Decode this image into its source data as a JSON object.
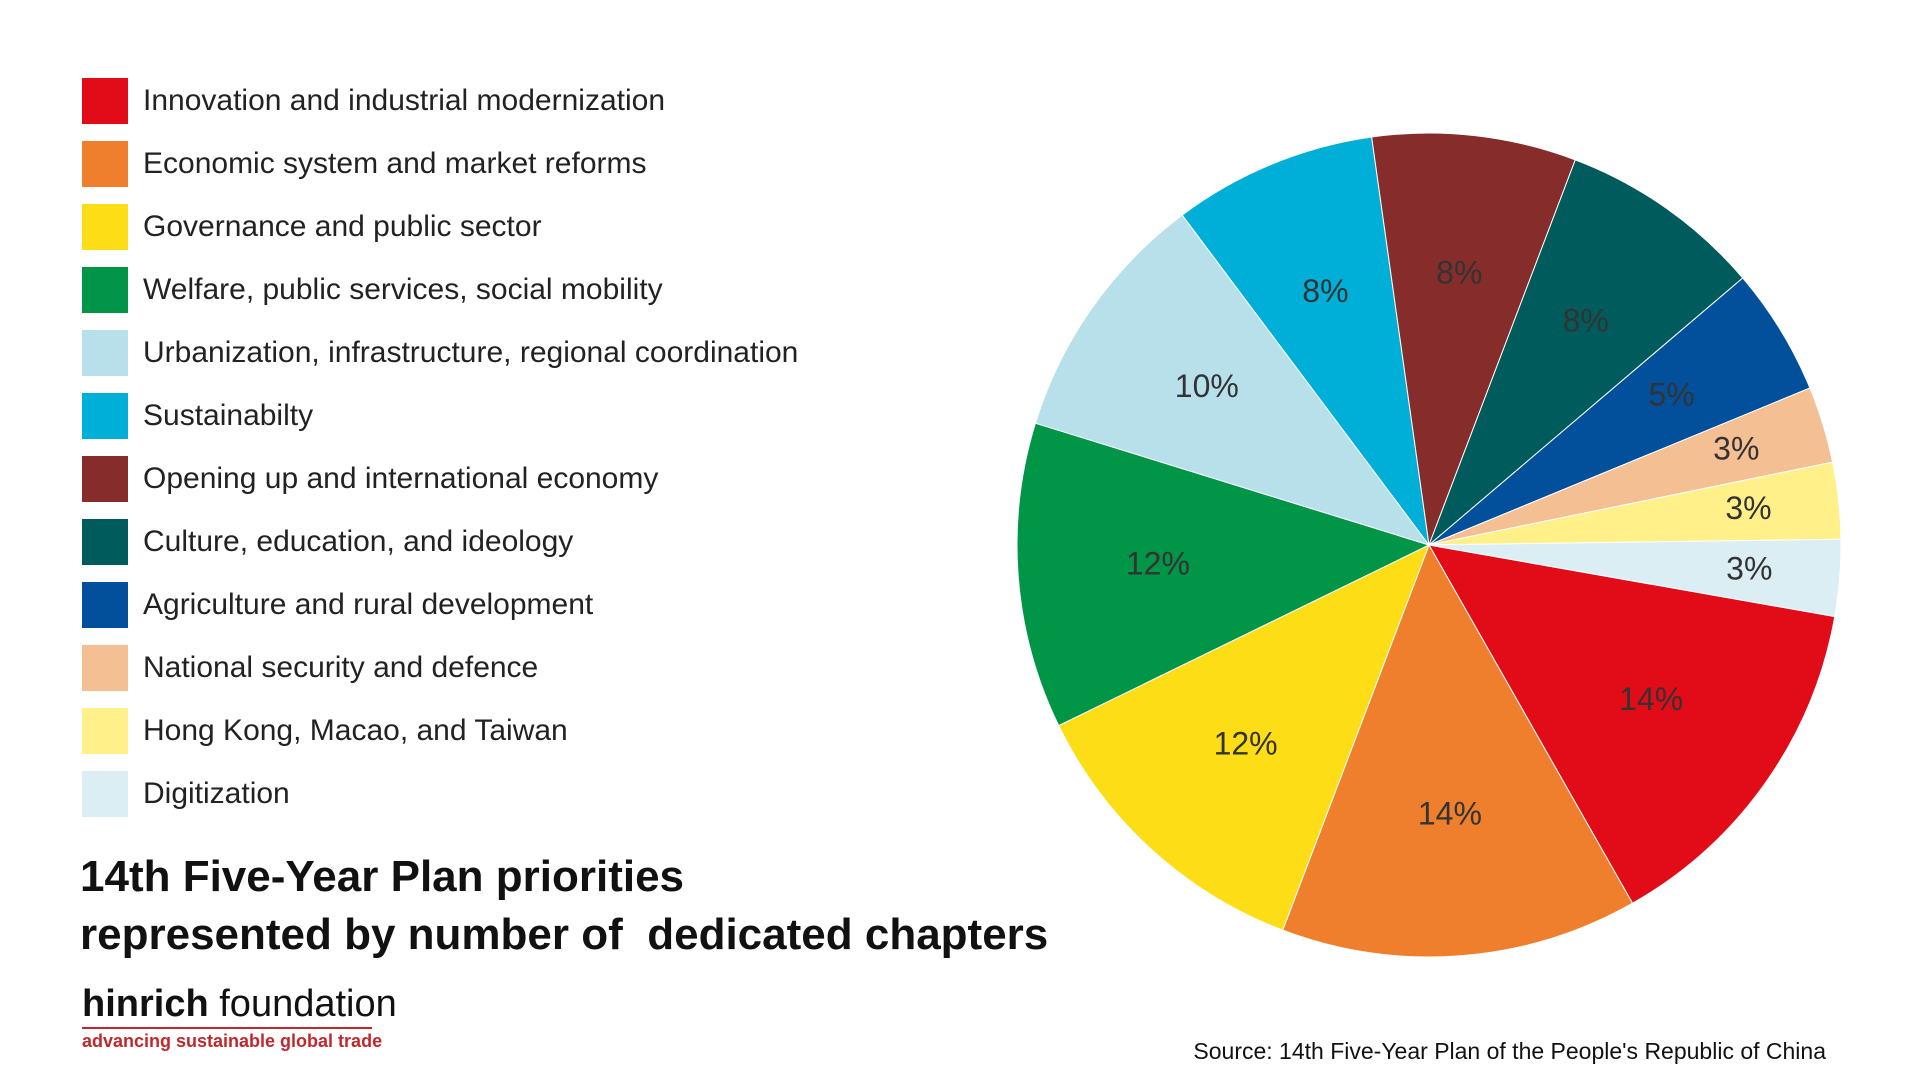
{
  "chart_data": {
    "type": "pie",
    "title": "14th Five-Year Plan priorities represented by number of  dedicated chapters",
    "title_lines": [
      "14th Five-Year Plan priorities",
      "represented by number of  dedicated chapters"
    ],
    "legend_position": "left",
    "slices": [
      {
        "label": "Innovation and industrial modernization",
        "value": 14,
        "display": "14%",
        "color": "#e20b18"
      },
      {
        "label": "Economic system and market reforms",
        "value": 14,
        "display": "14%",
        "color": "#ef7f2c"
      },
      {
        "label": "Governance and public sector",
        "value": 12,
        "display": "12%",
        "color": "#fddd15"
      },
      {
        "label": "Welfare, public services, social mobility",
        "value": 12,
        "display": "12%",
        "color": "#009547"
      },
      {
        "label": "Urbanization, infrastructure, regional coordination",
        "value": 10,
        "display": "10%",
        "color": "#b8e0ea"
      },
      {
        "label": "Sustainabilty",
        "value": 8,
        "display": "8%",
        "color": "#00afd8"
      },
      {
        "label": "Opening up and international economy",
        "value": 8,
        "display": "8%",
        "color": "#862c2a"
      },
      {
        "label": "Culture, education, and ideology",
        "value": 8,
        "display": "8%",
        "color": "#005b5c"
      },
      {
        "label": "Agriculture and rural development",
        "value": 5,
        "display": "5%",
        "color": "#02509b"
      },
      {
        "label": "National security and defence",
        "value": 3,
        "display": "3%",
        "color": "#f5bf94"
      },
      {
        "label": "Hong Kong, Macao, and Taiwan",
        "value": 3,
        "display": "3%",
        "color": "#fff08a"
      },
      {
        "label": "Digitization",
        "value": 3,
        "display": "3%",
        "color": "#daeef4"
      }
    ]
  },
  "branding": {
    "name_bold": "hinrich",
    "name_light": "foundation",
    "tagline": "advancing sustainable global trade"
  },
  "source": "Source: 14th Five-Year Plan of the People's Republic of China"
}
